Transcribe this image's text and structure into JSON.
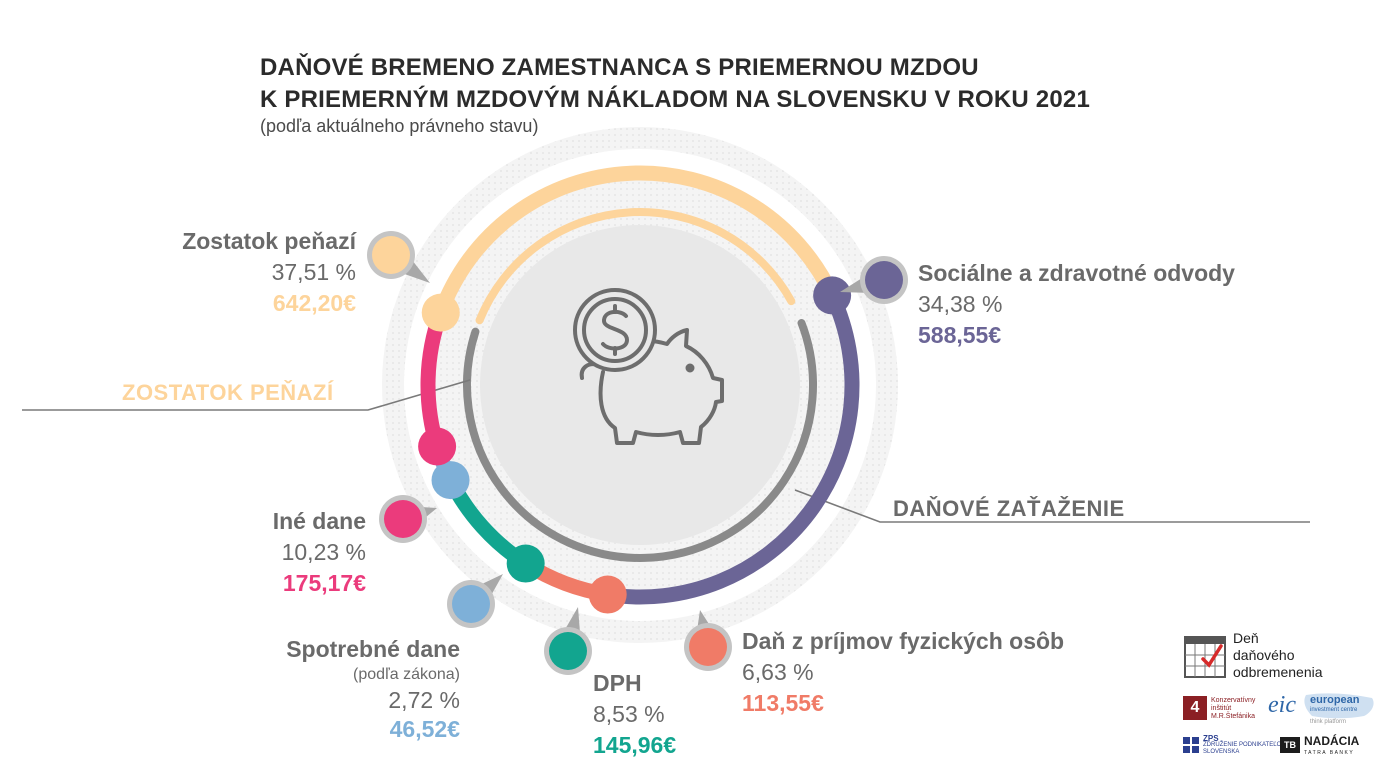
{
  "header": {
    "title_line1": "DAŇOVÉ BREMENO ZAMESTNANCA S PRIEMERNOU MZDOU",
    "title_line2": "K PRIEMERNÝM MZDOVÝM NÁKLADOM NA SLOVENSKU V ROKU 2021",
    "subtitle": "(podľa aktuálneho právneho stavu)"
  },
  "sections": {
    "remaining": "ZOSTATOK PEŇAZÍ",
    "tax_burden": "DAŇOVÉ ZAŤAŽENIE"
  },
  "chart_data": {
    "type": "pie",
    "title": "DAŇOVÉ BREMENO ZAMESTNANCA S PRIEMERNOU MZDOU K PRIEMERNÝM MZDOVÝM NÁKLADOM NA SLOVENSKU V ROKU 2021",
    "slices": [
      {
        "name": "Sociálne a zdravotné odvody",
        "percent": 34.38,
        "percent_label": "34,38 %",
        "amount_label": "588,55€",
        "color": "#6b6596"
      },
      {
        "name": "Daň z príjmov fyzických osôb",
        "percent": 6.63,
        "percent_label": "6,63 %",
        "amount_label": "113,55€",
        "color": "#f07b67"
      },
      {
        "name": "DPH",
        "percent": 8.53,
        "percent_label": "8,53 %",
        "amount_label": "145,96€",
        "color": "#12a58f"
      },
      {
        "name": "Spotrebné dane",
        "note": "(podľa zákona)",
        "percent": 2.72,
        "percent_label": "2,72 %",
        "amount_label": "46,52€",
        "color": "#7eb0d8"
      },
      {
        "name": "Iné dane",
        "percent": 10.23,
        "percent_label": "10,23 %",
        "amount_label": "175,17€",
        "color": "#eb3b7c"
      },
      {
        "name": "Zostatok peňazí",
        "percent": 37.51,
        "percent_label": "37,51 %",
        "amount_label": "642,20€",
        "color": "#fdd49b"
      }
    ]
  },
  "logos": {
    "den_line1": "Deň",
    "den_line2": "daňového",
    "den_line3": "odbremenenia",
    "konz_line1": "Konzervatívny",
    "konz_line2": "inštitút",
    "konz_line3": "M.R.Štefánika",
    "eic_mark": "eic",
    "eic_line1": "european",
    "eic_line2": "investment centre",
    "eic_line3": "think platform",
    "zps_mark": "ZPS",
    "zps_line1": "ZDRUŽENIE PODNIKATEĽOV",
    "zps_line2": "SLOVENSKA",
    "nadacia_line1": "NADÁCIA",
    "nadacia_line2": "TATRA BANKY",
    "konz_badge": "4",
    "nadacia_badge": "TB"
  }
}
